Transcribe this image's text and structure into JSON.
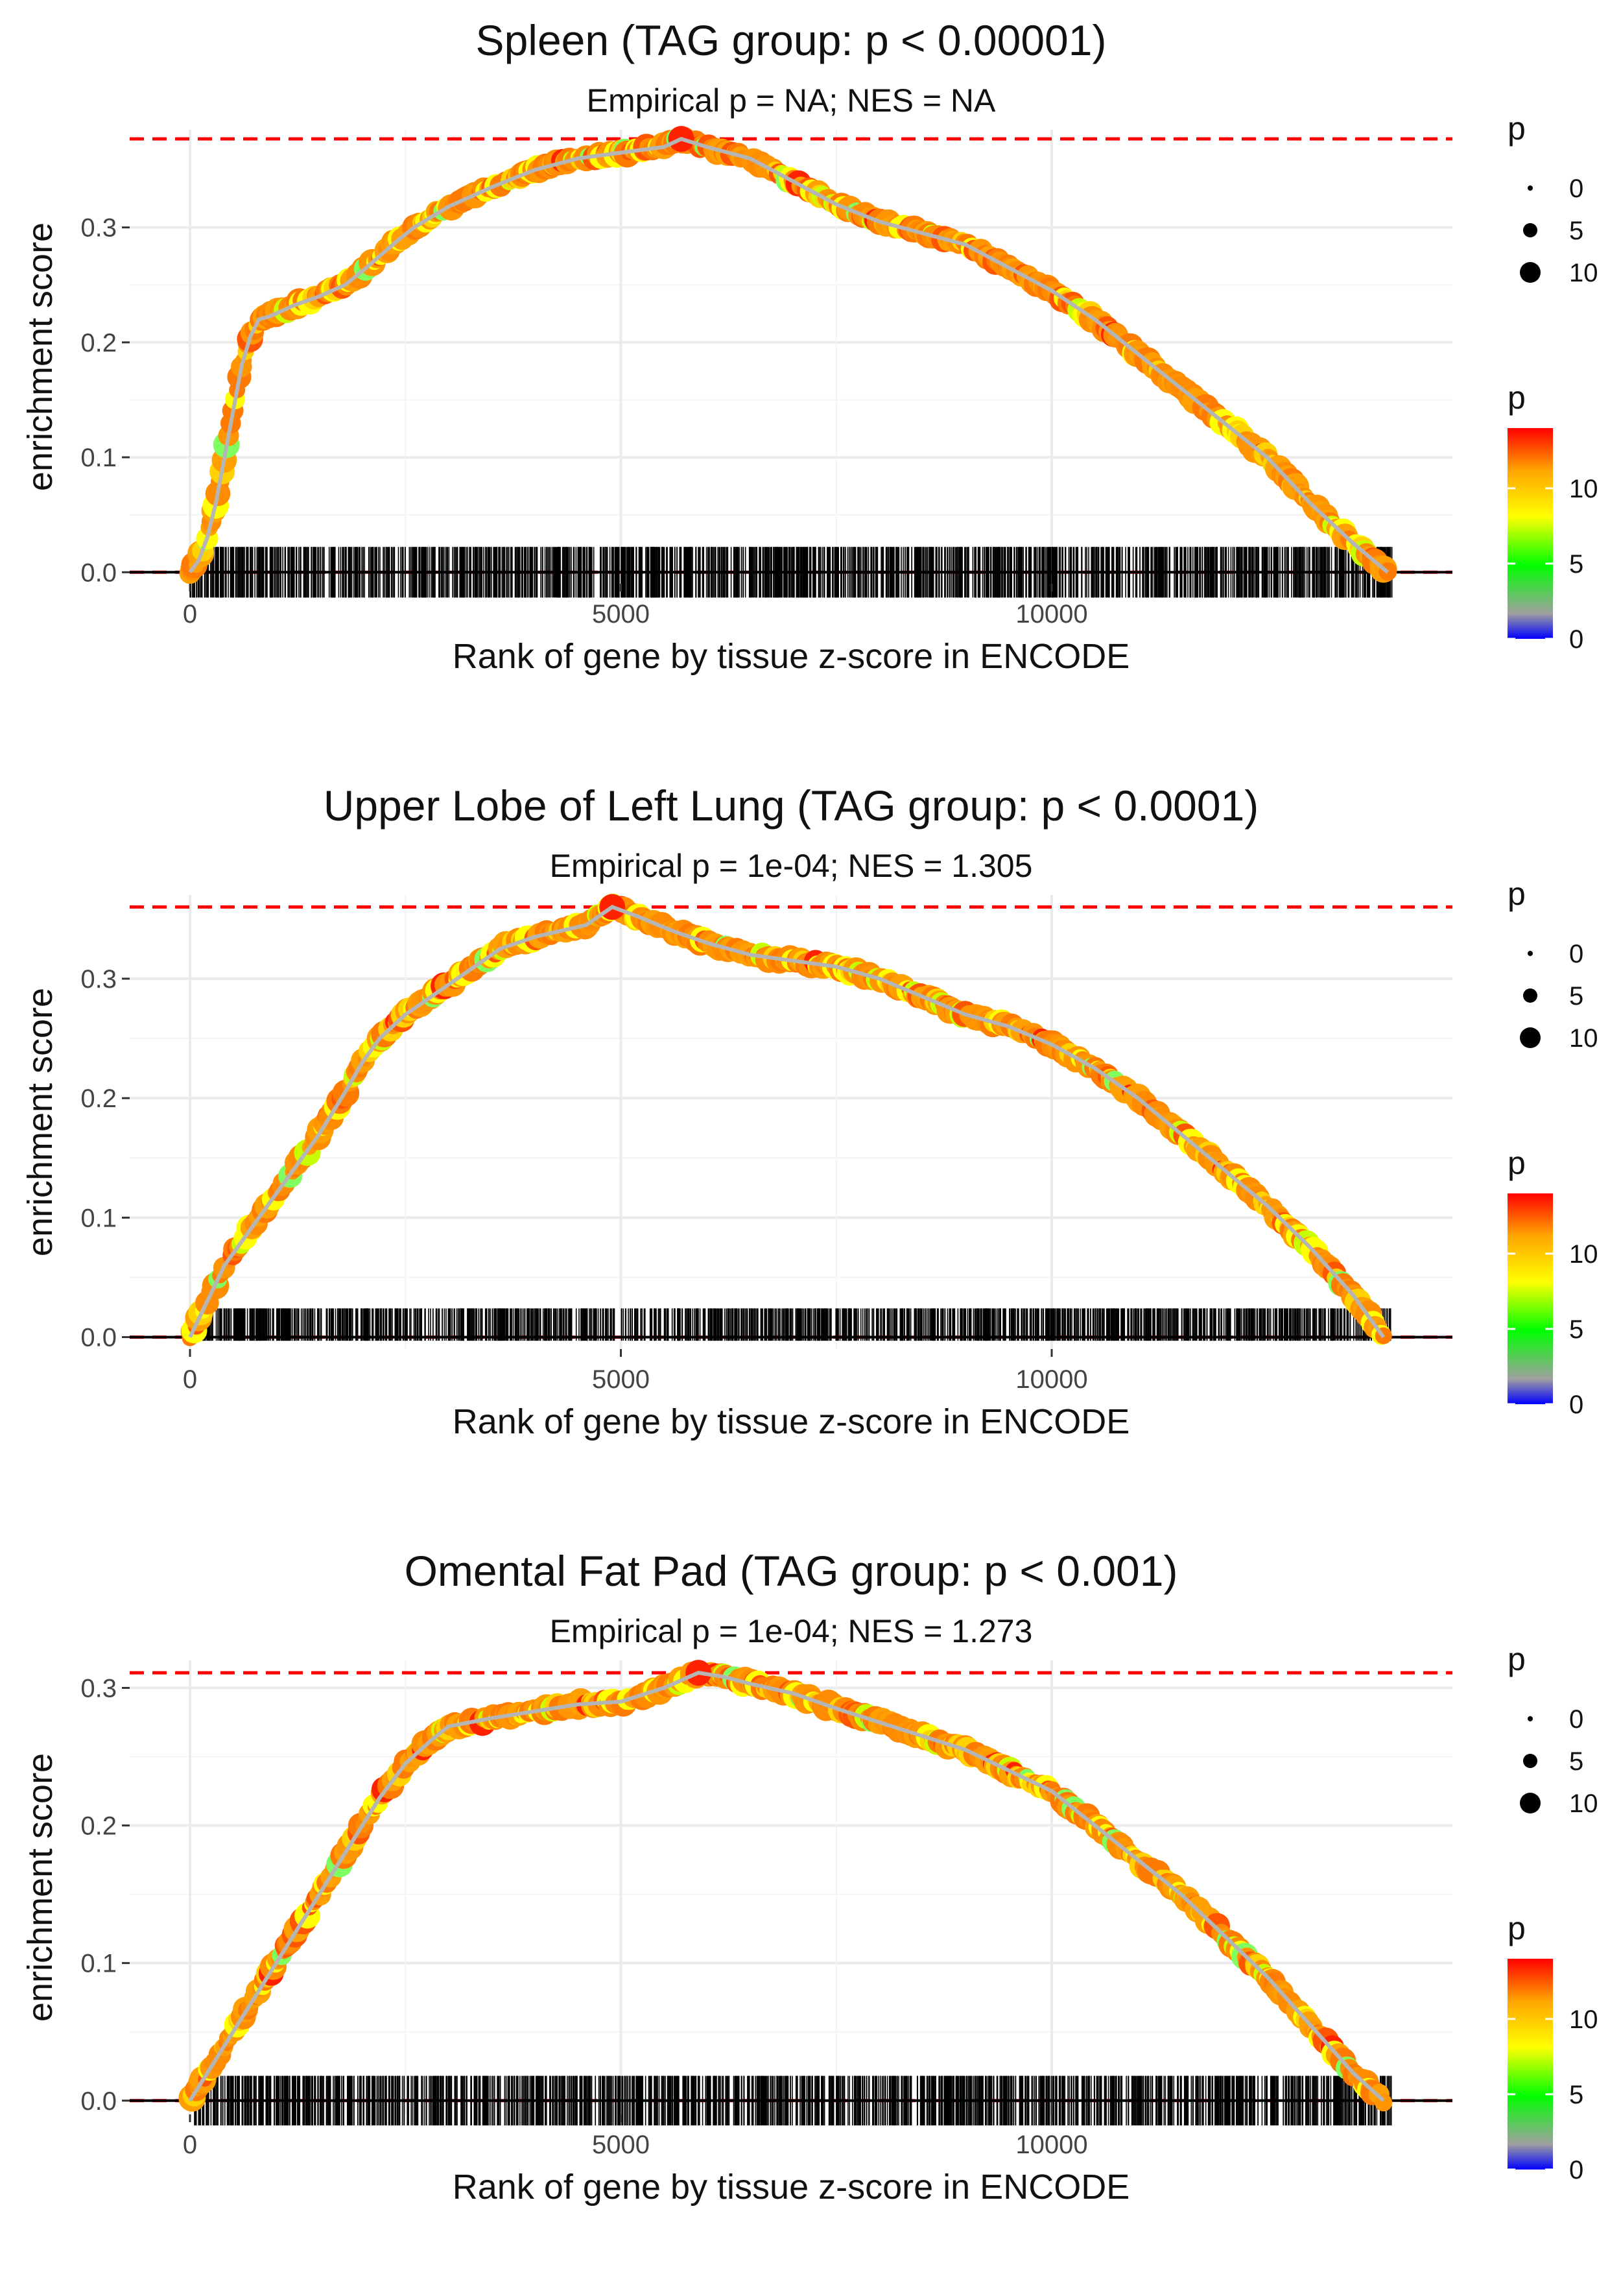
{
  "figure": {
    "type": "gsea-enrichment-plots",
    "panel_count": 3
  },
  "chart_data": [
    {
      "type": "line",
      "title": "Spleen (TAG group: p < 0.00001)",
      "subtitle": "Empirical p = NA; NES = NA",
      "xlabel": "Rank of gene by tissue z-score in ENCODE",
      "ylabel": "enrichment score",
      "xlim": [
        -700,
        14650
      ],
      "ylim": [
        -0.01,
        0.385
      ],
      "xticks": [
        0,
        5000,
        10000
      ],
      "yticks": [
        0.0,
        0.1,
        0.2,
        0.3
      ],
      "ytick_labels": [
        "0.0",
        "0.1",
        "0.2",
        "0.3"
      ],
      "max_es": 0.377,
      "max_rank": 5700,
      "curve": {
        "x": [
          0,
          100,
          200,
          300,
          400,
          500,
          600,
          700,
          800,
          900,
          1000,
          1200,
          1500,
          1800,
          2000,
          2200,
          2400,
          2600,
          3000,
          3500,
          4000,
          4500,
          5000,
          5500,
          5700,
          6000,
          6500,
          7000,
          7500,
          8000,
          8500,
          9000,
          9500,
          10000,
          10500,
          11000,
          11500,
          12000,
          12500,
          13000,
          13500,
          13900
        ],
        "y": [
          0.0,
          0.01,
          0.03,
          0.06,
          0.1,
          0.14,
          0.18,
          0.205,
          0.22,
          0.222,
          0.225,
          0.232,
          0.24,
          0.25,
          0.262,
          0.275,
          0.288,
          0.3,
          0.318,
          0.335,
          0.35,
          0.36,
          0.365,
          0.37,
          0.377,
          0.37,
          0.36,
          0.34,
          0.32,
          0.305,
          0.295,
          0.285,
          0.265,
          0.245,
          0.22,
          0.19,
          0.16,
          0.13,
          0.1,
          0.06,
          0.025,
          0.0
        ]
      },
      "rug": {
        "seed": 11,
        "count": 1500,
        "x_range": [
          0,
          13950
        ],
        "y_top": 0.022,
        "y_bottom": -0.022
      },
      "legend_size": {
        "title": "p",
        "labels": [
          "0",
          "5",
          "10"
        ]
      },
      "legend_color": {
        "title": "p",
        "labels": [
          "0",
          "5",
          "10"
        ],
        "stops": [
          "#0000ff",
          "#a0a0a0",
          "#00ff00",
          "#ffff00",
          "#ffa500",
          "#ff0000"
        ]
      }
    },
    {
      "type": "line",
      "title": "Upper Lobe of Left Lung (TAG group: p < 0.0001)",
      "subtitle": "Empirical p = 1e-04; NES = 1.305",
      "xlabel": "Rank of gene by tissue z-score in ENCODE",
      "ylabel": "enrichment score",
      "xlim": [
        -700,
        14650
      ],
      "ylim": [
        -0.01,
        0.37
      ],
      "xticks": [
        0,
        5000,
        10000
      ],
      "yticks": [
        0.0,
        0.1,
        0.2,
        0.3
      ],
      "ytick_labels": [
        "0.0",
        "0.1",
        "0.2",
        "0.3"
      ],
      "max_es": 0.36,
      "max_rank": 4900,
      "curve": {
        "x": [
          0,
          200,
          400,
          600,
          800,
          1000,
          1200,
          1500,
          1800,
          2000,
          2200,
          2500,
          2800,
          3000,
          3300,
          3600,
          4000,
          4300,
          4600,
          4900,
          5200,
          5600,
          6000,
          6500,
          7000,
          7500,
          8000,
          8500,
          9000,
          9500,
          10000,
          10500,
          11000,
          11500,
          12000,
          12500,
          13000,
          13500,
          13850
        ],
        "y": [
          0.0,
          0.03,
          0.06,
          0.08,
          0.1,
          0.12,
          0.14,
          0.17,
          0.205,
          0.23,
          0.25,
          0.27,
          0.285,
          0.295,
          0.31,
          0.325,
          0.335,
          0.34,
          0.345,
          0.36,
          0.352,
          0.34,
          0.33,
          0.32,
          0.315,
          0.31,
          0.3,
          0.285,
          0.27,
          0.26,
          0.245,
          0.225,
          0.2,
          0.17,
          0.14,
          0.11,
          0.075,
          0.035,
          0.0
        ]
      },
      "rug": {
        "seed": 23,
        "count": 1500,
        "x_range": [
          30,
          13950
        ],
        "y_top": 0.024,
        "y_bottom": -0.003
      },
      "legend_size": {
        "title": "p",
        "labels": [
          "0",
          "5",
          "10"
        ]
      },
      "legend_color": {
        "title": "p",
        "labels": [
          "0",
          "5",
          "10"
        ],
        "stops": [
          "#0000ff",
          "#a0a0a0",
          "#00ff00",
          "#ffff00",
          "#ffa500",
          "#ff0000"
        ]
      }
    },
    {
      "type": "line",
      "title": "Omental Fat Pad (TAG group: p < 0.001)",
      "subtitle": "Empirical p = 1e-04; NES = 1.273",
      "xlabel": "Rank of gene by tissue z-score in ENCODE",
      "ylabel": "enrichment score",
      "xlim": [
        -700,
        14650
      ],
      "ylim": [
        -0.01,
        0.32
      ],
      "xticks": [
        0,
        5000,
        10000
      ],
      "yticks": [
        0.0,
        0.1,
        0.2,
        0.3
      ],
      "ytick_labels": [
        "0.0",
        "0.1",
        "0.2",
        "0.3"
      ],
      "max_es": 0.311,
      "max_rank": 5900,
      "curve": {
        "x": [
          0,
          200,
          400,
          600,
          800,
          1000,
          1200,
          1500,
          1800,
          2000,
          2200,
          2500,
          2800,
          3000,
          3500,
          4000,
          4500,
          5000,
          5500,
          5900,
          6200,
          6500,
          7000,
          7500,
          8000,
          8500,
          9000,
          9500,
          10000,
          10500,
          11000,
          11500,
          12000,
          12500,
          13000,
          13500,
          13850
        ],
        "y": [
          0.0,
          0.02,
          0.04,
          0.06,
          0.08,
          0.1,
          0.12,
          0.15,
          0.18,
          0.2,
          0.22,
          0.245,
          0.262,
          0.272,
          0.278,
          0.283,
          0.288,
          0.29,
          0.3,
          0.311,
          0.308,
          0.303,
          0.296,
          0.285,
          0.275,
          0.265,
          0.255,
          0.24,
          0.225,
          0.2,
          0.175,
          0.15,
          0.12,
          0.09,
          0.055,
          0.02,
          0.0
        ]
      },
      "rug": {
        "seed": 37,
        "count": 1500,
        "x_range": [
          30,
          13950
        ],
        "y_top": 0.018,
        "y_bottom": -0.018
      },
      "legend_size": {
        "title": "p",
        "labels": [
          "0",
          "5",
          "10"
        ]
      },
      "legend_color": {
        "title": "p",
        "labels": [
          "0",
          "5",
          "10"
        ],
        "stops": [
          "#0000ff",
          "#a0a0a0",
          "#00ff00",
          "#ffff00",
          "#ffa500",
          "#ff0000"
        ]
      }
    }
  ]
}
